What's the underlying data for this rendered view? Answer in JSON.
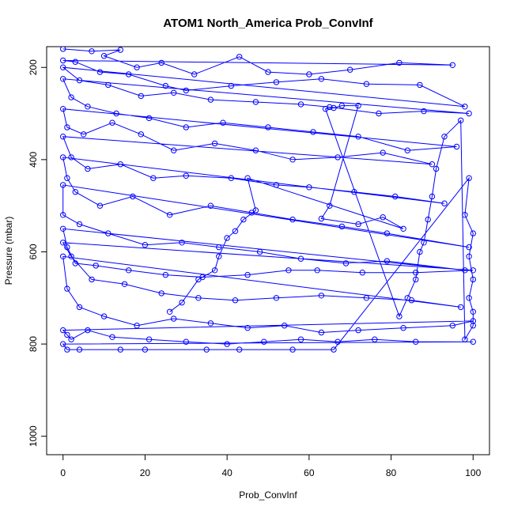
{
  "chart_data": {
    "type": "scatter",
    "title": "ATOM1 North_America Prob_ConvInf",
    "xlabel": "Prob_ConvInf",
    "ylabel": "Pressure (mbar)",
    "xlim": [
      -4,
      104
    ],
    "ylim": [
      1040,
      155
    ],
    "y_axis_reversed": true,
    "x_ticks": [
      0,
      20,
      40,
      60,
      80,
      100
    ],
    "x_tick_labels": [
      "0",
      "20",
      "40",
      "60",
      "80",
      "100"
    ],
    "y_ticks": [
      200,
      400,
      600,
      800,
      1000
    ],
    "y_tick_labels": [
      "200",
      "400",
      "600",
      "800",
      "1000"
    ],
    "grid": false,
    "legend": "none",
    "marker": "open-circle",
    "connected_by_lines": true,
    "color": "#0000ff",
    "series": [
      {
        "points": [
          [
            0,
            160
          ],
          [
            7,
            165
          ],
          [
            14,
            162
          ],
          [
            10,
            175
          ],
          [
            18,
            200
          ],
          [
            24,
            190
          ],
          [
            32,
            215
          ],
          [
            43,
            177
          ],
          [
            50,
            210
          ],
          [
            60,
            215
          ],
          [
            70,
            205
          ],
          [
            82,
            190
          ],
          [
            95,
            195
          ],
          [
            0,
            185
          ],
          [
            3,
            188
          ],
          [
            9,
            210
          ],
          [
            16,
            215
          ],
          [
            25,
            240
          ],
          [
            30,
            250
          ],
          [
            41,
            240
          ],
          [
            52,
            232
          ],
          [
            63,
            225
          ],
          [
            74,
            236
          ],
          [
            87,
            238
          ],
          [
            98,
            285
          ],
          [
            0,
            200
          ],
          [
            4,
            228
          ],
          [
            11,
            238
          ],
          [
            19,
            262
          ],
          [
            27,
            255
          ],
          [
            36,
            270
          ],
          [
            47,
            275
          ],
          [
            58,
            280
          ],
          [
            65,
            286
          ],
          [
            77,
            300
          ],
          [
            88,
            295
          ],
          [
            99,
            300
          ],
          [
            0,
            225
          ],
          [
            2,
            265
          ],
          [
            6,
            285
          ],
          [
            13,
            300
          ],
          [
            21,
            310
          ],
          [
            30,
            330
          ],
          [
            39,
            320
          ],
          [
            50,
            330
          ],
          [
            61,
            340
          ],
          [
            72,
            350
          ],
          [
            84,
            380
          ],
          [
            96,
            372
          ],
          [
            0,
            290
          ],
          [
            1,
            330
          ],
          [
            5,
            345
          ],
          [
            12,
            320
          ],
          [
            19,
            345
          ],
          [
            27,
            380
          ],
          [
            37,
            365
          ],
          [
            47,
            380
          ],
          [
            56,
            400
          ],
          [
            67,
            395
          ],
          [
            78,
            385
          ],
          [
            90,
            410
          ],
          [
            0,
            350
          ],
          [
            2,
            395
          ],
          [
            6,
            420
          ],
          [
            14,
            410
          ],
          [
            22,
            440
          ],
          [
            30,
            435
          ],
          [
            41,
            440
          ],
          [
            52,
            455
          ],
          [
            60,
            460
          ],
          [
            71,
            470
          ],
          [
            81,
            480
          ],
          [
            93,
            495
          ],
          [
            0,
            395
          ],
          [
            1,
            440
          ],
          [
            3,
            470
          ],
          [
            9,
            500
          ],
          [
            17,
            480
          ],
          [
            26,
            520
          ],
          [
            36,
            500
          ],
          [
            46,
            515
          ],
          [
            56,
            530
          ],
          [
            68,
            545
          ],
          [
            79,
            560
          ],
          [
            99,
            590
          ],
          [
            0,
            455
          ],
          [
            0,
            520
          ],
          [
            4,
            540
          ],
          [
            11,
            560
          ],
          [
            20,
            585
          ],
          [
            29,
            580
          ],
          [
            38,
            590
          ],
          [
            48,
            600
          ],
          [
            58,
            615
          ],
          [
            69,
            625
          ],
          [
            79,
            620
          ],
          [
            98,
            640
          ],
          [
            0,
            550
          ],
          [
            1,
            590
          ],
          [
            3,
            625
          ],
          [
            8,
            630
          ],
          [
            16,
            640
          ],
          [
            25,
            650
          ],
          [
            34,
            655
          ],
          [
            45,
            650
          ],
          [
            55,
            640
          ],
          [
            62,
            640
          ],
          [
            73,
            645
          ],
          [
            86,
            645
          ],
          [
            100,
            640
          ],
          [
            0,
            580
          ],
          [
            2,
            610
          ],
          [
            7,
            660
          ],
          [
            15,
            670
          ],
          [
            24,
            690
          ],
          [
            33,
            700
          ],
          [
            42,
            705
          ],
          [
            52,
            700
          ],
          [
            63,
            695
          ],
          [
            74,
            700
          ],
          [
            85,
            705
          ],
          [
            97,
            720
          ],
          [
            0,
            610
          ],
          [
            1,
            680
          ],
          [
            4,
            720
          ],
          [
            10,
            740
          ],
          [
            18,
            760
          ],
          [
            27,
            745
          ],
          [
            36,
            755
          ],
          [
            45,
            765
          ],
          [
            54,
            760
          ],
          [
            63,
            775
          ],
          [
            72,
            770
          ],
          [
            83,
            765
          ],
          [
            95,
            760
          ],
          [
            100,
            750
          ],
          [
            0,
            770
          ],
          [
            1,
            780
          ],
          [
            2,
            790
          ],
          [
            6,
            770
          ],
          [
            12,
            785
          ],
          [
            21,
            790
          ],
          [
            30,
            795
          ],
          [
            40,
            800
          ],
          [
            49,
            795
          ],
          [
            58,
            790
          ],
          [
            67,
            795
          ],
          [
            76,
            790
          ],
          [
            86,
            795
          ],
          [
            100,
            795
          ],
          [
            0,
            800
          ],
          [
            1,
            812
          ],
          [
            4,
            812
          ],
          [
            14,
            812
          ],
          [
            20,
            812
          ],
          [
            35,
            812
          ],
          [
            43,
            812
          ],
          [
            56,
            812
          ],
          [
            66,
            812
          ],
          [
            99,
            440
          ],
          [
            98,
            520
          ],
          [
            100,
            560
          ],
          [
            99,
            610
          ],
          [
            100,
            660
          ],
          [
            99,
            700
          ],
          [
            100,
            730
          ],
          [
            100,
            760
          ],
          [
            98,
            790
          ],
          [
            97,
            315
          ],
          [
            93,
            350
          ],
          [
            91,
            420
          ],
          [
            90,
            480
          ],
          [
            89,
            530
          ],
          [
            88,
            580
          ],
          [
            87,
            600
          ],
          [
            86,
            660
          ],
          [
            84,
            700
          ],
          [
            82,
            740
          ],
          [
            64,
            290
          ],
          [
            66,
            288
          ],
          [
            68,
            283
          ],
          [
            72,
            283
          ],
          [
            65,
            500
          ],
          [
            63,
            528
          ],
          [
            72,
            540
          ],
          [
            78,
            525
          ],
          [
            83,
            550
          ],
          [
            45,
            440
          ],
          [
            47,
            510
          ],
          [
            44,
            530
          ],
          [
            42,
            555
          ],
          [
            40,
            570
          ],
          [
            38,
            610
          ],
          [
            37,
            640
          ],
          [
            33,
            660
          ],
          [
            29,
            710
          ],
          [
            26,
            730
          ]
        ]
      }
    ]
  }
}
